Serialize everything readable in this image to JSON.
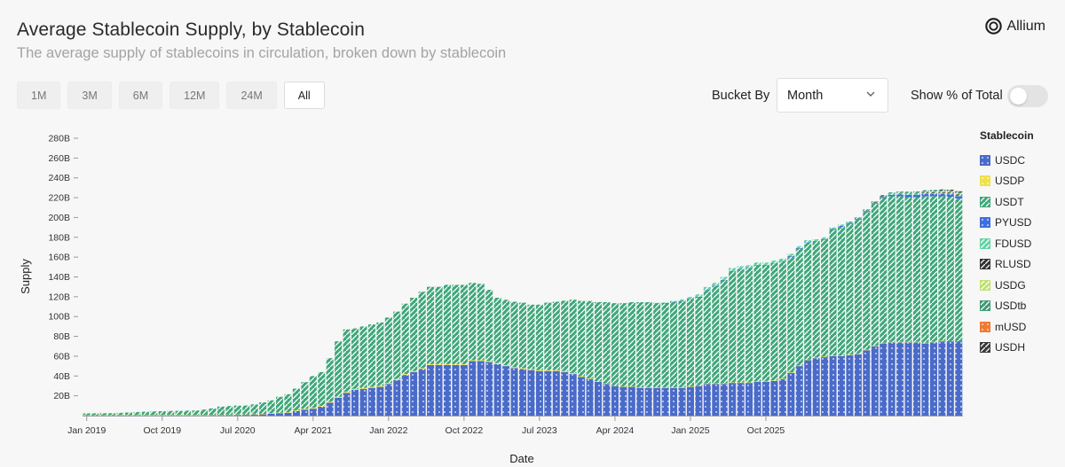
{
  "header": {
    "title": "Average Stablecoin Supply, by Stablecoin",
    "subtitle": "The average supply of stablecoins in circulation, broken down by stablecoin",
    "brand": "Allium"
  },
  "controls": {
    "ranges": [
      "1M",
      "3M",
      "6M",
      "12M",
      "24M",
      "All"
    ],
    "active_range": "All",
    "bucket_label": "Bucket By",
    "bucket_value": "Month",
    "pct_label": "Show % of Total",
    "pct_enabled": false
  },
  "legend_title": "Stablecoin",
  "colors": {
    "USDC": "#4a6bc9",
    "USDP": "#f0e04a",
    "USDT": "#3fa77a",
    "PYUSD": "#3f6ee0",
    "FDUSD": "#62d3a5",
    "RLUSD": "#333333",
    "USDG": "#bfe070",
    "USDtb": "#3f9a73",
    "mUSD": "#f07a32",
    "USDH": "#3a3a3a"
  },
  "chart_data": {
    "type": "bar",
    "stacked": true,
    "xlabel": "Date",
    "ylabel": "Supply",
    "ylim": [
      0,
      280
    ],
    "y_unit": "B",
    "yticks": [
      "20B",
      "40B",
      "60B",
      "80B",
      "100B",
      "120B",
      "140B",
      "160B",
      "180B",
      "200B",
      "220B",
      "240B",
      "260B",
      "280B"
    ],
    "xticks": [
      "Jan 2019",
      "Oct 2019",
      "Jul 2020",
      "Apr 2021",
      "Jan 2022",
      "Oct 2022",
      "Jul 2023",
      "Apr 2024",
      "Jan 2025",
      "Oct 2025"
    ],
    "months_start": "Jan 2019",
    "series": [
      {
        "name": "USDC",
        "values": [
          0.3,
          0.3,
          0.3,
          0.3,
          0.4,
          0.4,
          0.5,
          0.5,
          0.5,
          0.5,
          0.5,
          0.5,
          0.5,
          0.5,
          0.6,
          0.7,
          0.7,
          0.8,
          0.9,
          1,
          1,
          1.5,
          2,
          2.5,
          3,
          4.5,
          6,
          7,
          9,
          13,
          18,
          23,
          26,
          27,
          28,
          29,
          32,
          36,
          41,
          44,
          47,
          51,
          51,
          51,
          51,
          51,
          55,
          55,
          54,
          52,
          50,
          48,
          47,
          46,
          45,
          45,
          45,
          44,
          42,
          39,
          37,
          34,
          32,
          30,
          29,
          29,
          28,
          28,
          28,
          28,
          28,
          28,
          29,
          30,
          32,
          32,
          32,
          33,
          33,
          33,
          34,
          34,
          35,
          37,
          43,
          50,
          56,
          58,
          59,
          60,
          60,
          61,
          62,
          66,
          70,
          73,
          74,
          74,
          74,
          74,
          73,
          74,
          75,
          75,
          75
        ]
      },
      {
        "name": "USDP",
        "values": [
          0.1,
          0.1,
          0.1,
          0.1,
          0.1,
          0.1,
          0.1,
          0.1,
          0.1,
          0.1,
          0.1,
          0.1,
          0.1,
          0.1,
          0.1,
          0.2,
          0.2,
          0.2,
          0.2,
          0.2,
          0.3,
          0.3,
          0.4,
          0.5,
          0.6,
          0.7,
          0.8,
          0.9,
          0.9,
          1,
          1,
          1,
          1,
          1,
          1,
          1,
          1,
          1,
          1,
          1,
          1,
          1,
          1,
          1,
          1,
          1,
          1,
          1,
          1,
          1,
          1,
          1,
          1,
          1,
          1,
          1,
          1,
          1,
          1,
          0.8,
          0.7,
          0.6,
          0.5,
          0.5,
          0.5,
          0.5,
          0.5,
          0.5,
          0.5,
          0.5,
          0.5,
          0.5,
          0.5,
          0.5,
          0.5,
          0.5,
          0.5,
          0.5,
          0.5,
          0.5,
          0.5,
          0.5,
          0.5,
          0.5,
          0.5,
          0.5,
          0.5,
          0.5,
          0.5,
          0.5,
          0.5,
          0.5,
          0.5,
          0.5,
          0.5,
          0.5,
          0.5,
          0.5,
          0.5,
          0.5,
          0.5,
          0.5,
          0.5
        ]
      },
      {
        "name": "USDT",
        "values": [
          1.9,
          1.9,
          2,
          2,
          2.3,
          2.6,
          3,
          3.3,
          3.6,
          3.9,
          4.1,
          4.2,
          4.4,
          4.6,
          5.4,
          6.3,
          8.2,
          8.7,
          9,
          9,
          10,
          11.5,
          13,
          16,
          18,
          22,
          27,
          32,
          34,
          44,
          56,
          63,
          61,
          62,
          63,
          64,
          66,
          68,
          71,
          74,
          77,
          78,
          78,
          80,
          80,
          80,
          78,
          77,
          72,
          66,
          66,
          66,
          66,
          65,
          66,
          68,
          69,
          71,
          74,
          76,
          78,
          80,
          82,
          83,
          84,
          85,
          86,
          86,
          85,
          85,
          86,
          87,
          88,
          89,
          94,
          98,
          104,
          112,
          114,
          115,
          117,
          117,
          118,
          118,
          117,
          118,
          118,
          117,
          118,
          127,
          130,
          132,
          135,
          139,
          143,
          146,
          147,
          147,
          146,
          146,
          148,
          147,
          146,
          146,
          144
        ]
      },
      {
        "name": "PYUSD",
        "values": [
          0,
          0,
          0,
          0,
          0,
          0,
          0,
          0,
          0,
          0,
          0,
          0,
          0,
          0,
          0,
          0,
          0,
          0,
          0,
          0,
          0,
          0,
          0,
          0,
          0,
          0,
          0,
          0,
          0,
          0,
          0,
          0,
          0,
          0,
          0,
          0,
          0,
          0,
          0,
          0,
          0,
          0,
          0,
          0,
          0,
          0,
          0,
          0,
          0,
          0,
          0,
          0,
          0,
          0,
          0,
          0,
          0,
          0,
          0,
          0,
          0,
          0,
          0,
          0,
          0,
          0,
          0,
          0,
          0.1,
          0.2,
          0.3,
          0.3,
          0.3,
          0.4,
          0.5,
          0.5,
          0.5,
          0.5,
          0.5,
          0.5,
          0.5,
          0.5,
          0.5,
          0.5,
          0.6,
          0.6,
          0.6,
          0.7,
          0.8,
          0.9,
          1,
          1,
          1,
          1,
          1,
          1.2,
          1.5,
          2,
          2.5,
          2.5,
          2.5,
          2.5,
          2.5,
          2.5,
          2.5
        ]
      },
      {
        "name": "FDUSD",
        "values": [
          0,
          0,
          0,
          0,
          0,
          0,
          0,
          0,
          0,
          0,
          0,
          0,
          0,
          0,
          0,
          0,
          0,
          0,
          0,
          0,
          0,
          0,
          0,
          0,
          0,
          0,
          0,
          0,
          0,
          0,
          0,
          0,
          0,
          0,
          0,
          0,
          0,
          0,
          0,
          0,
          0,
          0,
          0,
          0,
          0,
          0,
          0,
          0,
          0,
          0,
          0,
          0,
          0,
          0,
          0,
          0,
          0,
          0,
          0,
          0,
          0,
          0,
          0,
          0,
          0,
          0,
          0,
          0,
          0.2,
          0.5,
          1,
          1.5,
          2,
          2.5,
          2.8,
          3,
          3,
          3,
          2.8,
          2.7,
          2.6,
          2.5,
          2.5,
          2.4,
          2.3,
          2,
          2,
          1.8,
          1.7,
          1.5,
          1.4,
          1.3,
          1.2,
          1.2,
          1.1,
          1,
          1,
          0.9,
          0.9,
          0.8,
          0.8,
          0.8,
          0.8,
          0.8,
          0.8
        ]
      },
      {
        "name": "RLUSD",
        "values": [
          0,
          0,
          0,
          0,
          0,
          0,
          0,
          0,
          0,
          0,
          0,
          0,
          0,
          0,
          0,
          0,
          0,
          0,
          0,
          0,
          0,
          0,
          0,
          0,
          0,
          0,
          0,
          0,
          0,
          0,
          0,
          0,
          0,
          0,
          0,
          0,
          0,
          0,
          0,
          0,
          0,
          0,
          0,
          0,
          0,
          0,
          0,
          0,
          0,
          0,
          0,
          0,
          0,
          0,
          0,
          0,
          0,
          0,
          0,
          0,
          0,
          0,
          0,
          0,
          0,
          0,
          0,
          0,
          0,
          0,
          0,
          0,
          0,
          0,
          0,
          0,
          0,
          0,
          0,
          0,
          0,
          0,
          0,
          0,
          0,
          0,
          0,
          0,
          0,
          0,
          0,
          0,
          0.1,
          0.1,
          0.1,
          0.2,
          0.2,
          0.3,
          0.4,
          0.5,
          0.6,
          0.7,
          0.8,
          0.9,
          1
        ]
      },
      {
        "name": "USDG",
        "values": [
          0,
          0,
          0,
          0,
          0,
          0,
          0,
          0,
          0,
          0,
          0,
          0,
          0,
          0,
          0,
          0,
          0,
          0,
          0,
          0,
          0,
          0,
          0,
          0,
          0,
          0,
          0,
          0,
          0,
          0,
          0,
          0,
          0,
          0,
          0,
          0,
          0,
          0,
          0,
          0,
          0,
          0,
          0,
          0,
          0,
          0,
          0,
          0,
          0,
          0,
          0,
          0,
          0,
          0,
          0,
          0,
          0,
          0,
          0,
          0,
          0,
          0,
          0,
          0,
          0,
          0,
          0,
          0,
          0,
          0,
          0,
          0,
          0,
          0,
          0,
          0,
          0,
          0,
          0,
          0,
          0,
          0,
          0,
          0,
          0,
          0,
          0,
          0,
          0,
          0,
          0,
          0,
          0,
          0,
          0,
          0,
          0.1,
          0.2,
          0.3,
          0.4,
          0.5,
          0.6,
          0.7,
          0.8,
          0.9
        ]
      },
      {
        "name": "USDtb",
        "values": [
          0,
          0,
          0,
          0,
          0,
          0,
          0,
          0,
          0,
          0,
          0,
          0,
          0,
          0,
          0,
          0,
          0,
          0,
          0,
          0,
          0,
          0,
          0,
          0,
          0,
          0,
          0,
          0,
          0,
          0,
          0,
          0,
          0,
          0,
          0,
          0,
          0,
          0,
          0,
          0,
          0,
          0,
          0,
          0,
          0,
          0,
          0,
          0,
          0,
          0,
          0,
          0,
          0,
          0,
          0,
          0,
          0,
          0,
          0,
          0,
          0,
          0,
          0,
          0,
          0,
          0,
          0,
          0,
          0,
          0,
          0,
          0,
          0,
          0,
          0,
          0,
          0,
          0,
          0,
          0,
          0,
          0,
          0,
          0,
          0,
          0,
          0,
          0,
          0,
          0,
          0,
          0.1,
          0.2,
          0.3,
          0.5,
          0.8,
          1,
          1.2,
          1.4,
          1.5,
          1.6,
          1.7,
          1.8,
          1.8,
          1.8
        ]
      },
      {
        "name": "mUSD",
        "values": [
          0,
          0,
          0,
          0,
          0,
          0,
          0,
          0,
          0,
          0,
          0,
          0,
          0,
          0,
          0,
          0,
          0,
          0,
          0,
          0,
          0,
          0,
          0,
          0,
          0,
          0,
          0,
          0,
          0,
          0,
          0,
          0,
          0,
          0,
          0,
          0,
          0,
          0,
          0,
          0,
          0,
          0,
          0,
          0,
          0,
          0,
          0,
          0,
          0,
          0,
          0,
          0,
          0,
          0,
          0,
          0,
          0,
          0,
          0,
          0,
          0,
          0,
          0,
          0,
          0,
          0,
          0,
          0,
          0,
          0,
          0,
          0,
          0,
          0,
          0,
          0,
          0,
          0,
          0,
          0,
          0,
          0,
          0,
          0,
          0,
          0,
          0,
          0,
          0,
          0,
          0,
          0,
          0,
          0,
          0,
          0,
          0,
          0,
          0,
          0,
          0,
          0,
          0.1,
          0.2,
          0.3
        ]
      },
      {
        "name": "USDH",
        "values": [
          0,
          0,
          0,
          0,
          0,
          0,
          0,
          0,
          0,
          0,
          0,
          0,
          0,
          0,
          0,
          0,
          0,
          0,
          0,
          0,
          0,
          0,
          0,
          0,
          0,
          0,
          0,
          0,
          0,
          0,
          0,
          0,
          0,
          0,
          0,
          0,
          0,
          0,
          0,
          0,
          0,
          0,
          0,
          0,
          0,
          0,
          0,
          0,
          0,
          0,
          0,
          0,
          0,
          0,
          0,
          0,
          0,
          0,
          0,
          0,
          0,
          0,
          0,
          0,
          0,
          0,
          0,
          0,
          0,
          0,
          0,
          0,
          0,
          0,
          0,
          0,
          0,
          0,
          0,
          0,
          0,
          0,
          0,
          0,
          0,
          0,
          0,
          0,
          0,
          0,
          0,
          0,
          0,
          0,
          0,
          0,
          0,
          0,
          0,
          0,
          0,
          0,
          0.1,
          0.1,
          0.2
        ]
      }
    ]
  }
}
